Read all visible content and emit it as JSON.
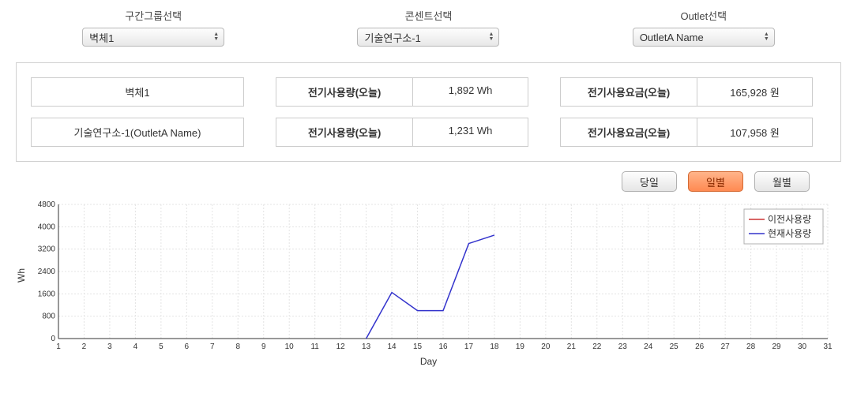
{
  "selectors": {
    "group": {
      "label": "구간그룹선택",
      "value": "벽체1"
    },
    "concent": {
      "label": "콘센트선택",
      "value": "기술연구소-1"
    },
    "outlet": {
      "label": "Outlet선택",
      "value": "OutletA Name"
    }
  },
  "stats": {
    "row1": {
      "name": "벽체1",
      "usage_label": "전기사용량(오늘)",
      "usage_value": "1,892 Wh",
      "fee_label": "전기사용요금(오늘)",
      "fee_value": "165,928 원"
    },
    "row2": {
      "name": "기술연구소-1(OutletA Name)",
      "usage_label": "전기사용량(오늘)",
      "usage_value": "1,231 Wh",
      "fee_label": "전기사용요금(오늘)",
      "fee_value": "107,958 원"
    }
  },
  "time_buttons": {
    "today": "당일",
    "daily": "일별",
    "monthly": "월별",
    "active": "daily"
  },
  "chart": {
    "type": "line",
    "ylabel": "Wh",
    "xlabel": "Day",
    "xlim": [
      1,
      31
    ],
    "xtick_step": 1,
    "ylim": [
      0,
      4800
    ],
    "ytick_step": 800,
    "grid_color": "#e4e4e4",
    "axis_color": "#333333",
    "background_color": "#ffffff",
    "label_fontsize": 11,
    "tick_fontsize": 10,
    "series": [
      {
        "name": "이전사용량",
        "color": "#cc3333",
        "line_width": 1.5,
        "data": []
      },
      {
        "name": "현재사용량",
        "color": "#3333cc",
        "line_width": 1.5,
        "data": [
          {
            "x": 13,
            "y": 0
          },
          {
            "x": 14,
            "y": 1650
          },
          {
            "x": 15,
            "y": 1000
          },
          {
            "x": 16,
            "y": 1000
          },
          {
            "x": 17,
            "y": 3400
          },
          {
            "x": 18,
            "y": 3700
          }
        ]
      }
    ],
    "legend": {
      "position": "top-right",
      "border_color": "#b0b0b0",
      "background_color": "#ffffff",
      "fontsize": 12
    }
  }
}
